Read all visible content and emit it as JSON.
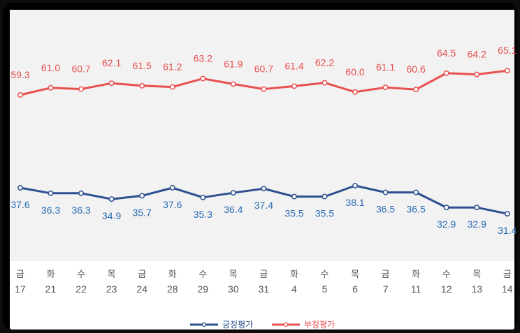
{
  "chart_data": {
    "type": "line",
    "categories": [
      {
        "day": "금",
        "date": "17"
      },
      {
        "day": "화",
        "date": "21"
      },
      {
        "day": "수",
        "date": "22"
      },
      {
        "day": "목",
        "date": "23"
      },
      {
        "day": "금",
        "date": "24"
      },
      {
        "day": "화",
        "date": "28"
      },
      {
        "day": "수",
        "date": "29"
      },
      {
        "day": "목",
        "date": "30"
      },
      {
        "day": "금",
        "date": "31"
      },
      {
        "day": "화",
        "date": "4"
      },
      {
        "day": "수",
        "date": "5"
      },
      {
        "day": "목",
        "date": "6"
      },
      {
        "day": "금",
        "date": "7"
      },
      {
        "day": "화",
        "date": "11"
      },
      {
        "day": "수",
        "date": "12"
      },
      {
        "day": "목",
        "date": "13"
      },
      {
        "day": "금",
        "date": "14"
      }
    ],
    "series": [
      {
        "name": "부정평가",
        "color": "#e8504f",
        "values": [
          59.3,
          61.0,
          60.7,
          62.1,
          61.5,
          61.2,
          63.2,
          61.9,
          60.7,
          61.4,
          62.2,
          60.0,
          61.1,
          60.6,
          64.5,
          64.2,
          65.1
        ],
        "labels": [
          "59.3",
          "61.0",
          "60.7",
          "62.1",
          "61.5",
          "61.2",
          "63.2",
          "61.9",
          "60.7",
          "61.4",
          "62.2",
          "60.0",
          "61.1",
          "60.6",
          "64.5",
          "64.2",
          "65.1"
        ]
      },
      {
        "name": "긍정평가",
        "color": "#2c4f8f",
        "values": [
          37.6,
          36.3,
          36.3,
          34.9,
          35.7,
          37.6,
          35.3,
          36.4,
          37.4,
          35.5,
          35.5,
          38.1,
          36.5,
          36.5,
          32.9,
          32.9,
          31.4
        ],
        "labels": [
          "37.6",
          "36.3",
          "36.3",
          "34.9",
          "35.7",
          "37.6",
          "35.3",
          "36.4",
          "37.4",
          "35.5",
          "35.5",
          "38.1",
          "36.5",
          "36.5",
          "32.9",
          "32.9",
          "31.4"
        ]
      }
    ],
    "legend": [
      "긍정평가",
      "부정평가"
    ],
    "legend_position": "bottom-center",
    "grid": false
  }
}
